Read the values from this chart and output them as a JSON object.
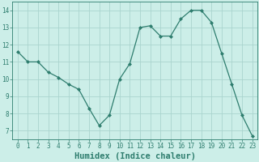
{
  "x": [
    0,
    1,
    2,
    3,
    4,
    5,
    6,
    7,
    8,
    9,
    10,
    11,
    12,
    13,
    14,
    15,
    16,
    17,
    18,
    19,
    20,
    21,
    22,
    23
  ],
  "y": [
    11.6,
    11.0,
    11.0,
    10.4,
    10.1,
    9.7,
    9.4,
    8.3,
    7.3,
    7.9,
    10.0,
    10.9,
    13.0,
    13.1,
    12.5,
    12.5,
    13.5,
    14.0,
    14.0,
    13.3,
    11.5,
    9.7,
    7.9,
    6.7
  ],
  "line_color": "#2e7d6e",
  "marker": "D",
  "marker_size": 2.0,
  "bg_color": "#cceee8",
  "grid_color": "#aad4ce",
  "xlabel": "Humidex (Indice chaleur)",
  "xlim": [
    -0.5,
    23.5
  ],
  "ylim": [
    6.5,
    14.5
  ],
  "yticks": [
    7,
    8,
    9,
    10,
    11,
    12,
    13,
    14
  ],
  "xticks": [
    0,
    1,
    2,
    3,
    4,
    5,
    6,
    7,
    8,
    9,
    10,
    11,
    12,
    13,
    14,
    15,
    16,
    17,
    18,
    19,
    20,
    21,
    22,
    23
  ],
  "tick_label_fontsize": 5.5,
  "xlabel_fontsize": 7.5,
  "text_color": "#2e7d6e",
  "spine_color": "#2e7d6e",
  "linewidth": 0.9
}
